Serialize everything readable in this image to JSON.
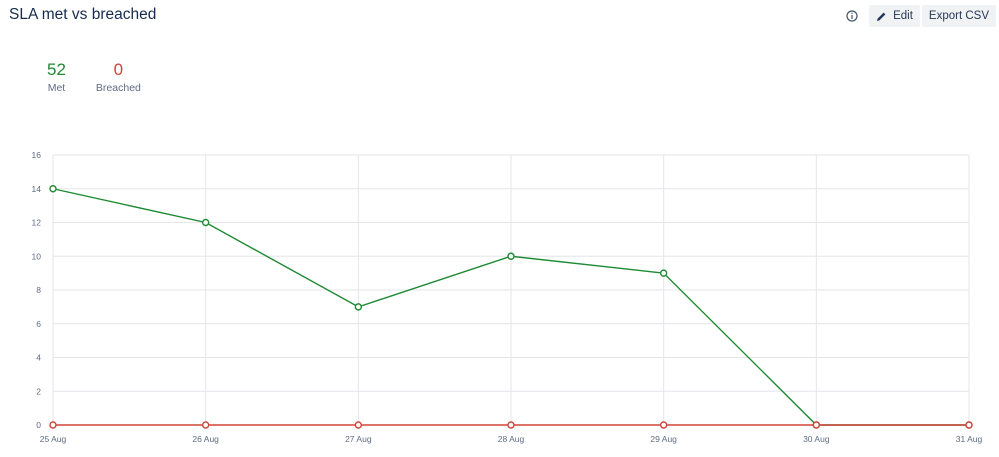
{
  "header": {
    "title": "SLA met vs breached",
    "edit_label": "Edit",
    "export_label": "Export CSV"
  },
  "summary": {
    "met_count": "52",
    "met_label": "Met",
    "breached_count": "0",
    "breached_label": "Breached"
  },
  "colors": {
    "met": "#1f8a34",
    "breached": "#d04437"
  },
  "chart_data": {
    "type": "line",
    "categories": [
      "25 Aug",
      "26 Aug",
      "27 Aug",
      "28 Aug",
      "29 Aug",
      "30 Aug",
      "31 Aug"
    ],
    "series": [
      {
        "name": "Met",
        "values": [
          14,
          12,
          7,
          10,
          9,
          0,
          0
        ],
        "color": "#1f8a34"
      },
      {
        "name": "Breached",
        "values": [
          0,
          0,
          0,
          0,
          0,
          0,
          0
        ],
        "color": "#d04437"
      }
    ],
    "yticks": [
      0,
      2,
      4,
      6,
      8,
      10,
      12,
      14,
      16
    ],
    "ylim": [
      0,
      16
    ],
    "grid": true,
    "title": "",
    "xlabel": "",
    "ylabel": ""
  }
}
